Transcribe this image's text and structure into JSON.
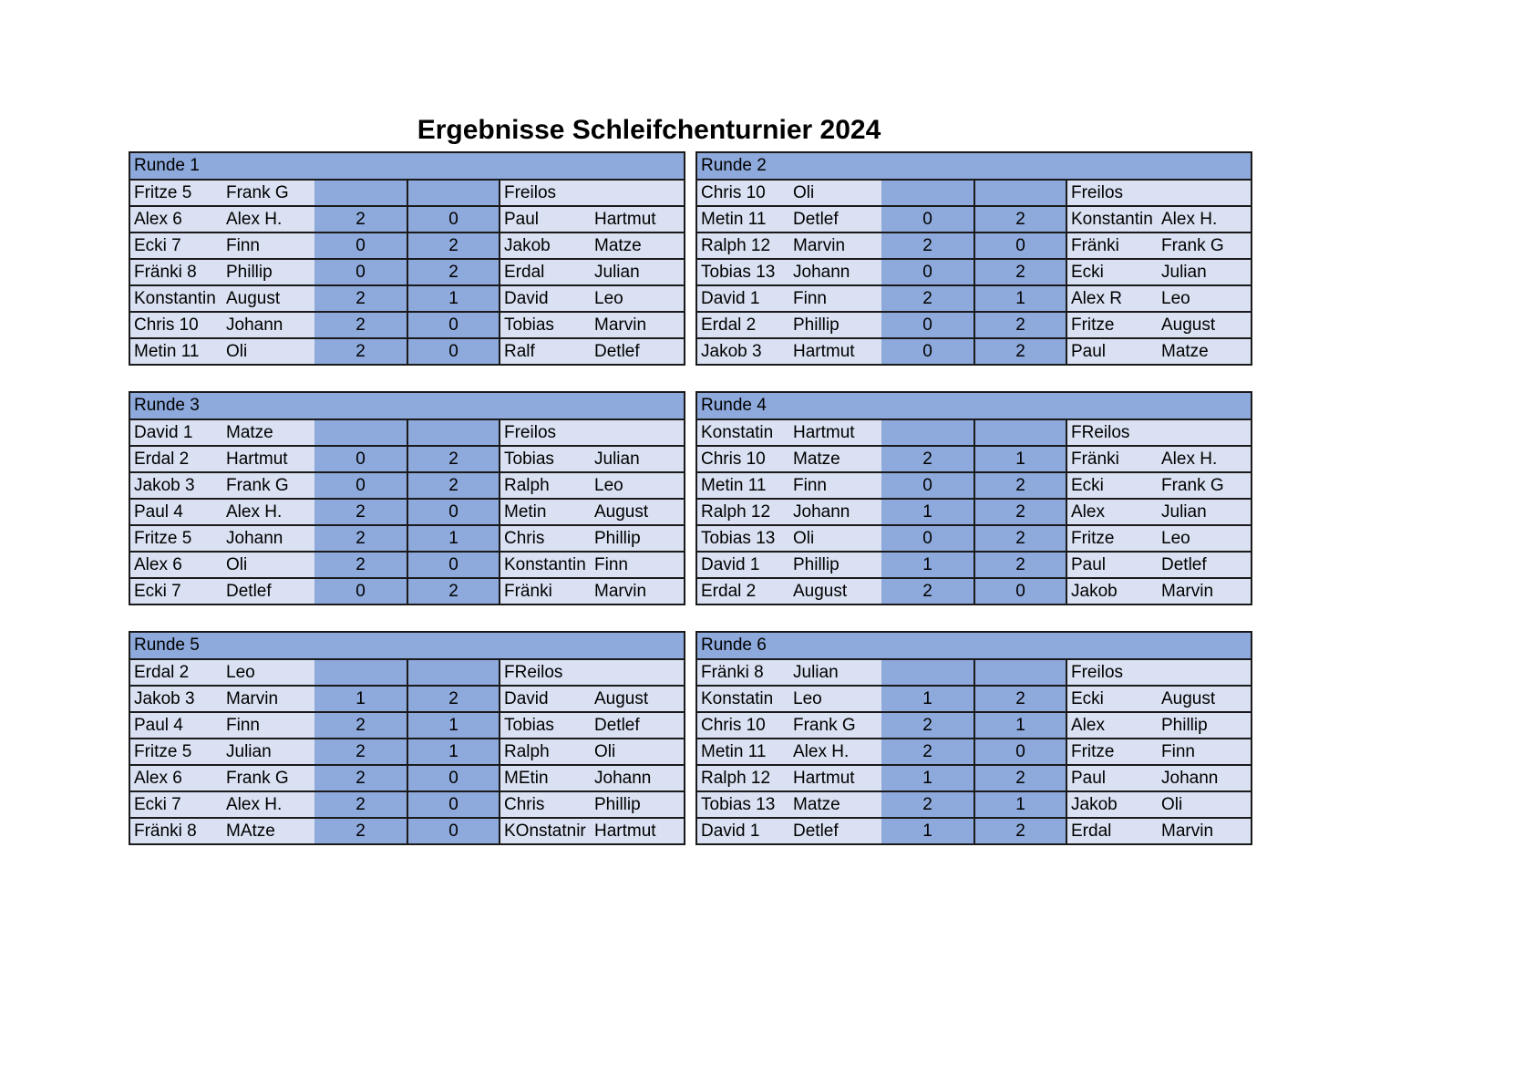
{
  "title": "Ergebnisse Schleifchenturnier 2024",
  "rounds": [
    {
      "label": "Runde 1",
      "rows": [
        [
          "Fritze 5",
          "Frank G",
          "",
          "",
          "Freilos",
          ""
        ],
        [
          "Alex 6",
          "Alex H.",
          "2",
          "0",
          "Paul",
          "Hartmut"
        ],
        [
          "Ecki 7",
          "Finn",
          "0",
          "2",
          "Jakob",
          "Matze"
        ],
        [
          "Fränki 8",
          "Phillip",
          "0",
          "2",
          "Erdal",
          "Julian"
        ],
        [
          "Konstantin",
          "August",
          "2",
          "1",
          "David",
          "Leo"
        ],
        [
          "Chris 10",
          "Johann",
          "2",
          "0",
          "Tobias",
          "Marvin"
        ],
        [
          "Metin 11",
          "Oli",
          "2",
          "0",
          "Ralf",
          "Detlef"
        ]
      ]
    },
    {
      "label": "Runde 2",
      "rows": [
        [
          "Chris 10",
          "Oli",
          "",
          "",
          "Freilos",
          ""
        ],
        [
          "Metin 11",
          "Detlef",
          "0",
          "2",
          "Konstantin",
          "Alex H."
        ],
        [
          "Ralph 12",
          "Marvin",
          "2",
          "0",
          "Fränki",
          "Frank G"
        ],
        [
          "Tobias 13",
          "Johann",
          "0",
          "2",
          "Ecki",
          "Julian"
        ],
        [
          "David 1",
          "Finn",
          "2",
          "1",
          "Alex R",
          "Leo"
        ],
        [
          "Erdal 2",
          "Phillip",
          "0",
          "2",
          "Fritze",
          "August"
        ],
        [
          "Jakob 3",
          "Hartmut",
          "0",
          "2",
          "Paul",
          "Matze"
        ]
      ]
    },
    {
      "label": "Runde 3",
      "rows": [
        [
          "David 1",
          "Matze",
          "",
          "",
          "Freilos",
          ""
        ],
        [
          "Erdal 2",
          "Hartmut",
          "0",
          "2",
          "Tobias",
          "Julian"
        ],
        [
          "Jakob 3",
          "Frank G",
          "0",
          "2",
          "Ralph",
          "Leo"
        ],
        [
          "Paul 4",
          "Alex H.",
          "2",
          "0",
          "Metin",
          "August"
        ],
        [
          "Fritze 5",
          "Johann",
          "2",
          "1",
          "Chris",
          "Phillip"
        ],
        [
          "Alex 6",
          "Oli",
          "2",
          "0",
          "Konstantin",
          "Finn"
        ],
        [
          "Ecki 7",
          "Detlef",
          "0",
          "2",
          "Fränki",
          "Marvin"
        ]
      ]
    },
    {
      "label": "Runde 4",
      "rows": [
        [
          "Konstatin",
          "Hartmut",
          "",
          "",
          "FReilos",
          ""
        ],
        [
          "Chris 10",
          "Matze",
          "2",
          "1",
          "Fränki",
          "Alex H."
        ],
        [
          "Metin 11",
          "Finn",
          "0",
          "2",
          "Ecki",
          "Frank G"
        ],
        [
          "Ralph 12",
          "Johann",
          "1",
          "2",
          "Alex",
          "Julian"
        ],
        [
          "Tobias 13",
          "Oli",
          "0",
          "2",
          "Fritze",
          "Leo"
        ],
        [
          "David 1",
          "Phillip",
          "1",
          "2",
          "Paul",
          "Detlef"
        ],
        [
          "Erdal 2",
          "August",
          "2",
          "0",
          "Jakob",
          "Marvin"
        ]
      ]
    },
    {
      "label": "Runde 5",
      "rows": [
        [
          "Erdal 2",
          "Leo",
          "",
          "",
          "FReilos",
          ""
        ],
        [
          "Jakob 3",
          "Marvin",
          "1",
          "2",
          "David",
          "August"
        ],
        [
          "Paul 4",
          "Finn",
          "2",
          "1",
          "Tobias",
          "Detlef"
        ],
        [
          "Fritze 5",
          "Julian",
          "2",
          "1",
          "Ralph",
          "Oli"
        ],
        [
          "Alex 6",
          "Frank G",
          "2",
          "0",
          "MEtin",
          "Johann"
        ],
        [
          "Ecki 7",
          "Alex H.",
          "2",
          "0",
          "Chris",
          "Phillip"
        ],
        [
          "Fränki 8",
          "MAtze",
          "2",
          "0",
          "KOnstatnir",
          "Hartmut"
        ]
      ]
    },
    {
      "label": "Runde 6",
      "rows": [
        [
          "Fränki 8",
          "Julian",
          "",
          "",
          "Freilos",
          ""
        ],
        [
          "Konstatin",
          "Leo",
          "1",
          "2",
          "Ecki",
          "August"
        ],
        [
          "Chris 10",
          "Frank G",
          "2",
          "1",
          "Alex",
          "Phillip"
        ],
        [
          "Metin 11",
          "Alex H.",
          "2",
          "0",
          "Fritze",
          "Finn"
        ],
        [
          "Ralph 12",
          "Hartmut",
          "1",
          "2",
          "Paul",
          "Johann"
        ],
        [
          "Tobias 13",
          "Matze",
          "2",
          "1",
          "Jakob",
          "Oli"
        ],
        [
          "David 1",
          "Detlef",
          "1",
          "2",
          "Erdal",
          "Marvin"
        ]
      ]
    }
  ]
}
